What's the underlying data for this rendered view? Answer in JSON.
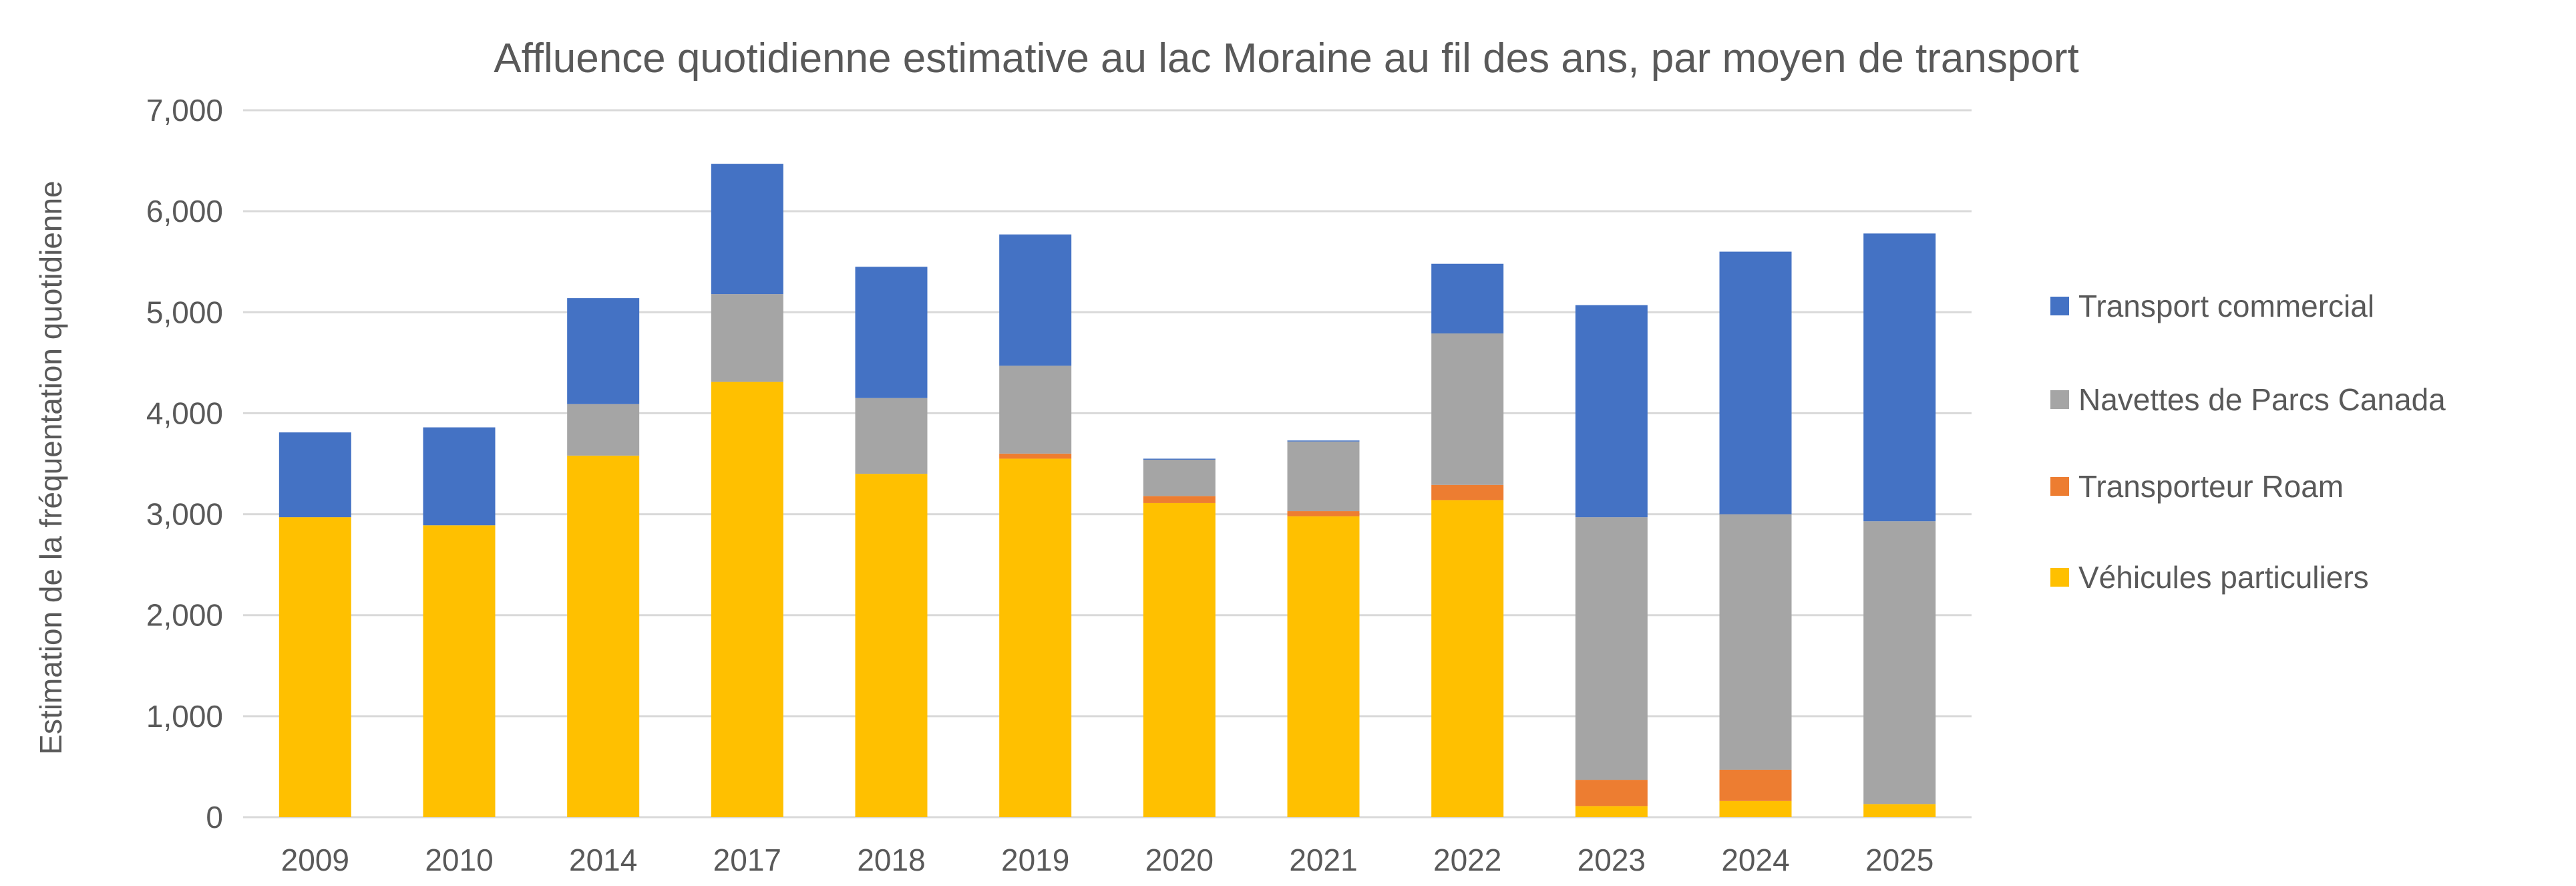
{
  "chart_data": {
    "type": "bar",
    "stacked": true,
    "title": "Affluence quotidienne estimative au lac Moraine au fil des ans, par moyen de transport",
    "xlabel": "",
    "ylabel": "Estimation de la fréquentation quotidienne",
    "ylim": [
      0,
      7000
    ],
    "yticks": [
      0,
      1000,
      2000,
      3000,
      4000,
      5000,
      6000,
      7000
    ],
    "ytick_labels": [
      "0",
      "1,000",
      "2,000",
      "3,000",
      "4,000",
      "5,000",
      "6,000",
      "7,000"
    ],
    "grid": true,
    "legend_position": "right",
    "categories": [
      "2009",
      "2010",
      "2014",
      "2017",
      "2018",
      "2019",
      "2020",
      "2021",
      "2022",
      "2023",
      "2024",
      "2025"
    ],
    "series": [
      {
        "name": "Véhicules particuliers",
        "color": "#FFC000",
        "values": [
          2970,
          2890,
          3580,
          4310,
          3400,
          3550,
          3110,
          2980,
          3140,
          110,
          160,
          130
        ]
      },
      {
        "name": "Transporteur Roam",
        "color": "#ED7D31",
        "values": [
          0,
          0,
          0,
          0,
          0,
          50,
          70,
          50,
          150,
          260,
          310,
          0
        ]
      },
      {
        "name": "Navettes de Parcs Canada",
        "color": "#A5A5A5",
        "values": [
          0,
          0,
          510,
          870,
          750,
          870,
          360,
          690,
          1500,
          2600,
          2530,
          2800
        ]
      },
      {
        "name": "Transport commercial",
        "color": "#4472C4",
        "values": [
          840,
          970,
          1050,
          1290,
          1300,
          1300,
          10,
          10,
          690,
          2100,
          2600,
          2850
        ]
      }
    ]
  }
}
